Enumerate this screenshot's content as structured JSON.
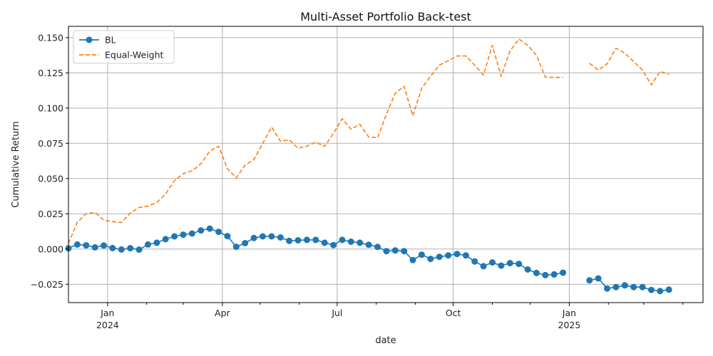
{
  "chart_data": {
    "type": "line",
    "title": "Multi-Asset Portfolio Back-test",
    "xlabel": "date",
    "ylabel": "Cumulative Return",
    "xlim": [
      "2023-12-01",
      "2025-04-17"
    ],
    "ylim": [
      -0.038,
      0.158
    ],
    "grid": true,
    "legend_position": "top-left",
    "x_ticks": [
      {
        "date": "2024-01-01",
        "label": "Jan",
        "sublabel": "2024"
      },
      {
        "date": "2024-04-01",
        "label": "Apr",
        "sublabel": ""
      },
      {
        "date": "2024-07-01",
        "label": "Jul",
        "sublabel": ""
      },
      {
        "date": "2024-10-01",
        "label": "Oct",
        "sublabel": ""
      },
      {
        "date": "2025-01-01",
        "label": "Jan",
        "sublabel": "2025"
      }
    ],
    "x_minor_ticks": [
      "2024-02-01",
      "2024-03-01",
      "2024-05-01",
      "2024-06-01",
      "2024-08-01",
      "2024-09-01",
      "2024-11-01",
      "2024-12-01",
      "2025-02-01",
      "2025-03-01",
      "2025-04-01"
    ],
    "y_ticks": [
      -0.025,
      0.0,
      0.025,
      0.05,
      0.075,
      0.1,
      0.125,
      0.15
    ],
    "y_tick_labels": [
      "−0.025",
      "0.000",
      "0.025",
      "0.050",
      "0.075",
      "0.100",
      "0.125",
      "0.150"
    ],
    "series": [
      {
        "name": "BL",
        "color": "#1f77b4",
        "style": "solid",
        "marker": "circle",
        "points": [
          [
            "2023-12-01",
            0.0005
          ],
          [
            "2023-12-08",
            0.0032
          ],
          [
            "2023-12-15",
            0.0026
          ],
          [
            "2023-12-22",
            0.0012
          ],
          [
            "2023-12-29",
            0.0025
          ],
          [
            "2024-01-05",
            0.0007
          ],
          [
            "2024-01-12",
            -0.0003
          ],
          [
            "2024-01-19",
            0.0006
          ],
          [
            "2024-01-26",
            -0.0004
          ],
          [
            "2024-02-02",
            0.0032
          ],
          [
            "2024-02-09",
            0.0045
          ],
          [
            "2024-02-16",
            0.007
          ],
          [
            "2024-02-23",
            0.009
          ],
          [
            "2024-03-01",
            0.0102
          ],
          [
            "2024-03-08",
            0.011
          ],
          [
            "2024-03-15",
            0.0132
          ],
          [
            "2024-03-22",
            0.0145
          ],
          [
            "2024-03-29",
            0.0122
          ],
          [
            "2024-04-05",
            0.0092
          ],
          [
            "2024-04-12",
            0.0016
          ],
          [
            "2024-04-19",
            0.0042
          ],
          [
            "2024-04-26",
            0.0078
          ],
          [
            "2024-05-03",
            0.009
          ],
          [
            "2024-05-10",
            0.009
          ],
          [
            "2024-05-17",
            0.0082
          ],
          [
            "2024-05-24",
            0.0058
          ],
          [
            "2024-05-31",
            0.0062
          ],
          [
            "2024-06-07",
            0.0065
          ],
          [
            "2024-06-14",
            0.0065
          ],
          [
            "2024-06-21",
            0.0045
          ],
          [
            "2024-06-28",
            0.0028
          ],
          [
            "2024-07-05",
            0.0065
          ],
          [
            "2024-07-12",
            0.0052
          ],
          [
            "2024-07-19",
            0.0045
          ],
          [
            "2024-07-26",
            0.003
          ],
          [
            "2024-08-02",
            0.0015
          ],
          [
            "2024-08-09",
            -0.0015
          ],
          [
            "2024-08-16",
            -0.001
          ],
          [
            "2024-08-23",
            -0.0015
          ],
          [
            "2024-08-30",
            -0.0078
          ],
          [
            "2024-09-06",
            -0.004
          ],
          [
            "2024-09-13",
            -0.007
          ],
          [
            "2024-09-20",
            -0.0055
          ],
          [
            "2024-09-27",
            -0.0045
          ],
          [
            "2024-10-04",
            -0.0035
          ],
          [
            "2024-10-11",
            -0.0045
          ],
          [
            "2024-10-18",
            -0.0088
          ],
          [
            "2024-10-25",
            -0.0122
          ],
          [
            "2024-11-01",
            -0.0095
          ],
          [
            "2024-11-08",
            -0.0118
          ],
          [
            "2024-11-15",
            -0.01
          ],
          [
            "2024-11-22",
            -0.0105
          ],
          [
            "2024-11-29",
            -0.0145
          ],
          [
            "2024-12-06",
            -0.017
          ],
          [
            "2024-12-13",
            -0.0185
          ],
          [
            "2024-12-20",
            -0.018
          ],
          [
            "2024-12-27",
            -0.0168
          ],
          null,
          [
            "2025-01-17",
            -0.0222
          ],
          [
            "2025-01-24",
            -0.0208
          ],
          [
            "2025-01-31",
            -0.028
          ],
          [
            "2025-02-07",
            -0.027
          ],
          [
            "2025-02-14",
            -0.0258
          ],
          [
            "2025-02-21",
            -0.027
          ],
          [
            "2025-02-28",
            -0.027
          ],
          [
            "2025-03-07",
            -0.029
          ],
          [
            "2025-03-14",
            -0.0298
          ],
          [
            "2025-03-21",
            -0.0288
          ]
        ]
      },
      {
        "name": "Equal-Weight",
        "color": "#ff7f0e",
        "style": "dashed",
        "marker": "none",
        "points": [
          [
            "2023-12-01",
            0.004
          ],
          [
            "2023-12-08",
            0.019
          ],
          [
            "2023-12-15",
            0.025
          ],
          [
            "2023-12-22",
            0.026
          ],
          [
            "2023-12-29",
            0.0205
          ],
          [
            "2024-01-05",
            0.0195
          ],
          [
            "2024-01-12",
            0.0188
          ],
          [
            "2024-01-19",
            0.0255
          ],
          [
            "2024-01-26",
            0.0295
          ],
          [
            "2024-02-02",
            0.0305
          ],
          [
            "2024-02-09",
            0.033
          ],
          [
            "2024-02-16",
            0.039
          ],
          [
            "2024-02-23",
            0.0485
          ],
          [
            "2024-03-01",
            0.0535
          ],
          [
            "2024-03-08",
            0.0555
          ],
          [
            "2024-03-15",
            0.0605
          ],
          [
            "2024-03-22",
            0.0695
          ],
          [
            "2024-03-29",
            0.073
          ],
          [
            "2024-04-05",
            0.057
          ],
          [
            "2024-04-12",
            0.0505
          ],
          [
            "2024-04-19",
            0.0595
          ],
          [
            "2024-04-26",
            0.0635
          ],
          [
            "2024-05-03",
            0.075
          ],
          [
            "2024-05-10",
            0.0865
          ],
          [
            "2024-05-17",
            0.0765
          ],
          [
            "2024-05-24",
            0.0775
          ],
          [
            "2024-05-31",
            0.0715
          ],
          [
            "2024-06-07",
            0.073
          ],
          [
            "2024-06-14",
            0.0758
          ],
          [
            "2024-06-21",
            0.0728
          ],
          [
            "2024-06-28",
            0.082
          ],
          [
            "2024-07-05",
            0.0925
          ],
          [
            "2024-07-12",
            0.085
          ],
          [
            "2024-07-19",
            0.0885
          ],
          [
            "2024-07-26",
            0.0795
          ],
          [
            "2024-08-02",
            0.079
          ],
          [
            "2024-08-09",
            0.0955
          ],
          [
            "2024-08-16",
            0.1105
          ],
          [
            "2024-08-23",
            0.1155
          ],
          [
            "2024-08-30",
            0.0945
          ],
          [
            "2024-09-06",
            0.114
          ],
          [
            "2024-09-13",
            0.1225
          ],
          [
            "2024-09-20",
            0.1305
          ],
          [
            "2024-09-27",
            0.1335
          ],
          [
            "2024-10-04",
            0.137
          ],
          [
            "2024-10-11",
            0.137
          ],
          [
            "2024-10-18",
            0.1305
          ],
          [
            "2024-10-25",
            0.1235
          ],
          [
            "2024-11-01",
            0.1445
          ],
          [
            "2024-11-08",
            0.1225
          ],
          [
            "2024-11-15",
            0.1405
          ],
          [
            "2024-11-22",
            0.149
          ],
          [
            "2024-11-29",
            0.1445
          ],
          [
            "2024-12-06",
            0.1375
          ],
          [
            "2024-12-13",
            0.122
          ],
          [
            "2024-12-20",
            0.1218
          ],
          [
            "2024-12-27",
            0.1218
          ],
          null,
          [
            "2025-01-17",
            0.1318
          ],
          [
            "2025-01-24",
            0.127
          ],
          [
            "2025-01-31",
            0.1315
          ],
          [
            "2025-02-07",
            0.1425
          ],
          [
            "2025-02-14",
            0.139
          ],
          [
            "2025-02-21",
            0.133
          ],
          [
            "2025-02-28",
            0.127
          ],
          [
            "2025-03-07",
            0.1165
          ],
          [
            "2025-03-14",
            0.126
          ],
          [
            "2025-03-21",
            0.124
          ]
        ]
      }
    ]
  }
}
